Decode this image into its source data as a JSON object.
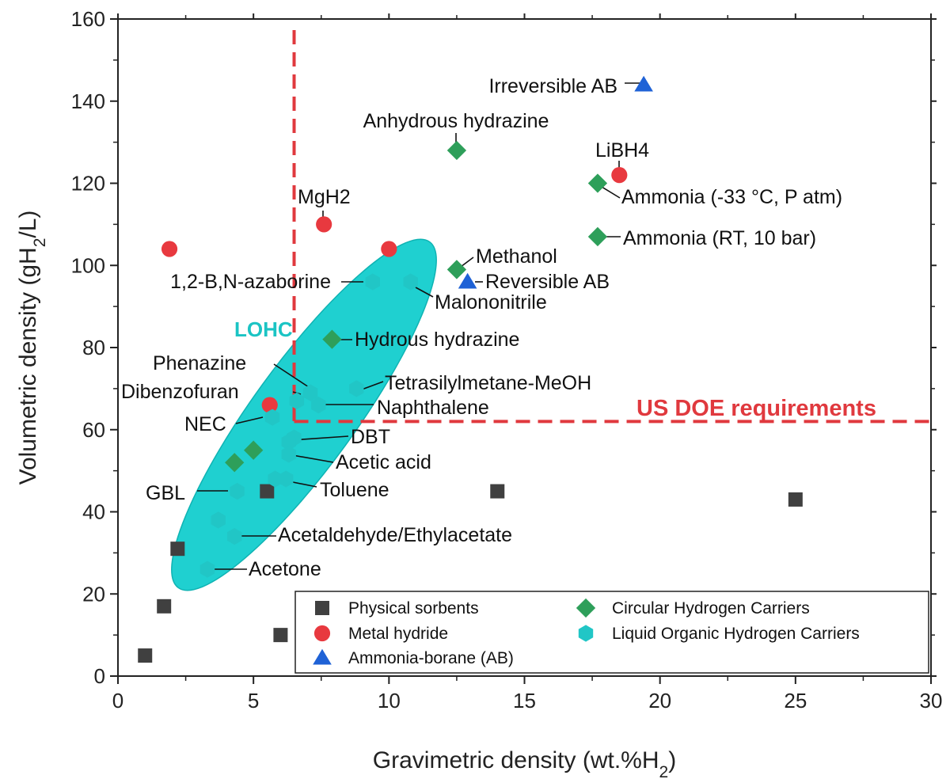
{
  "chart_data": {
    "type": "scatter",
    "xlabel": "Gravimetric density (wt.%H₂)",
    "ylabel": "Volumetric density (gH₂/L)",
    "xlim": [
      0,
      30
    ],
    "ylim": [
      0,
      160
    ],
    "x_ticks": [
      0,
      5,
      10,
      15,
      20,
      25,
      30
    ],
    "y_ticks": [
      0,
      20,
      40,
      60,
      80,
      100,
      120,
      140,
      160
    ],
    "grid": false,
    "legend_position": "bottom-right",
    "series": [
      {
        "name": "Physical sorbents",
        "marker": "square",
        "color": "#404040",
        "points": [
          [
            1.0,
            5
          ],
          [
            1.7,
            17
          ],
          [
            2.2,
            31
          ],
          [
            5.5,
            45
          ],
          [
            6.0,
            10
          ],
          [
            14.0,
            45
          ],
          [
            25.0,
            43
          ]
        ]
      },
      {
        "name": "Metal hydride",
        "marker": "circle",
        "color": "#e8393f",
        "points": [
          [
            1.9,
            104
          ],
          [
            5.6,
            66
          ],
          [
            7.6,
            110
          ],
          [
            10.0,
            104
          ],
          [
            18.5,
            122
          ]
        ]
      },
      {
        "name": "Ammonia-borane (AB)",
        "marker": "triangle",
        "color": "#1f62d6",
        "points": [
          [
            19.4,
            144
          ],
          [
            12.9,
            96
          ]
        ]
      },
      {
        "name": "Circular Hydrogen Carriers",
        "marker": "diamond",
        "color": "#2e9f5a",
        "points": [
          [
            12.5,
            128
          ],
          [
            17.7,
            120
          ],
          [
            17.7,
            107
          ],
          [
            12.5,
            99
          ],
          [
            7.9,
            82
          ],
          [
            4.3,
            52
          ],
          [
            5.0,
            55
          ]
        ]
      },
      {
        "name": "Liquid Organic Hydrogen Carriers",
        "marker": "hexagon",
        "color": "#21c6c6",
        "points": [
          [
            9.4,
            96
          ],
          [
            10.8,
            96
          ],
          [
            8.8,
            70
          ],
          [
            7.1,
            69
          ],
          [
            6.6,
            67
          ],
          [
            7.4,
            66
          ],
          [
            5.7,
            63
          ],
          [
            6.5,
            58
          ],
          [
            6.3,
            57
          ],
          [
            6.3,
            54
          ],
          [
            5.8,
            48
          ],
          [
            6.2,
            48
          ],
          [
            4.4,
            45
          ],
          [
            3.7,
            38
          ],
          [
            4.3,
            34
          ],
          [
            3.3,
            26
          ]
        ]
      }
    ],
    "annotations": [
      {
        "text": "Irreversible AB",
        "x": 19.4,
        "y": 144
      },
      {
        "text": "Anhydrous hydrazine",
        "x": 12.5,
        "y": 128
      },
      {
        "text": "LiBH4",
        "x": 18.5,
        "y": 122
      },
      {
        "text": "Ammonia (-33 °C, P atm)",
        "x": 17.7,
        "y": 120
      },
      {
        "text": "MgH2",
        "x": 7.6,
        "y": 110
      },
      {
        "text": "Ammonia (RT, 10 bar)",
        "x": 17.7,
        "y": 107
      },
      {
        "text": "Methanol",
        "x": 12.5,
        "y": 99
      },
      {
        "text": "1,2-B,N-azaborine",
        "x": 9.4,
        "y": 96
      },
      {
        "text": "Reversible AB",
        "x": 12.9,
        "y": 96
      },
      {
        "text": "Malononitrile",
        "x": 10.8,
        "y": 96
      },
      {
        "text": "LOHC",
        "x": null,
        "y": null
      },
      {
        "text": "Hydrous hydrazine",
        "x": 7.9,
        "y": 82
      },
      {
        "text": "Phenazine",
        "x": 7.1,
        "y": 69
      },
      {
        "text": "Tetrasilylmetane-MeOH",
        "x": 8.8,
        "y": 70
      },
      {
        "text": "Dibenzofuran",
        "x": 6.6,
        "y": 67
      },
      {
        "text": "Naphthalene",
        "x": 7.4,
        "y": 66
      },
      {
        "text": "US DOE requirements",
        "x": null,
        "y": null
      },
      {
        "text": "NEC",
        "x": 5.7,
        "y": 63
      },
      {
        "text": "DBT",
        "x": 6.5,
        "y": 58
      },
      {
        "text": "Acetic acid",
        "x": 6.3,
        "y": 54
      },
      {
        "text": "GBL",
        "x": 4.4,
        "y": 45
      },
      {
        "text": "Toluene",
        "x": 6.2,
        "y": 48
      },
      {
        "text": "Acetaldehyde/Ethylacetate",
        "x": 4.3,
        "y": 34
      },
      {
        "text": "Acetone",
        "x": 3.3,
        "y": 26
      }
    ],
    "doe_requirement": {
      "x": 6.5,
      "y": 62,
      "color": "#e0393e"
    },
    "lohc_region_color": "#1fd0d0"
  }
}
